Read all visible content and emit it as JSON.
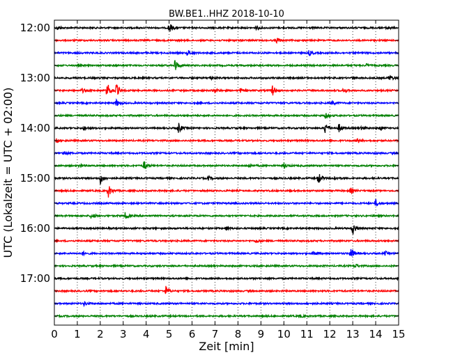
{
  "chart_data": {
    "type": "line",
    "title": "BW.BE1..HHZ 2018-10-10",
    "xlabel": "Zeit  [min]",
    "ylabel": "UTC (Lokalzeit = UTC + 02:00)",
    "xlim": [
      0,
      15
    ],
    "x_ticks": [
      0,
      1,
      2,
      3,
      4,
      5,
      6,
      7,
      8,
      9,
      10,
      11,
      12,
      13,
      14,
      15
    ],
    "y_tick_labels": [
      "12:00",
      "13:00",
      "14:00",
      "15:00",
      "16:00",
      "17:00"
    ],
    "grid": "vertical dotted at each minute",
    "trace_colors": [
      "#000000",
      "#ff0000",
      "#0000ff",
      "#008000"
    ],
    "traces": [
      {
        "start": "12:00",
        "events": [
          [
            0.15,
            3
          ],
          [
            5.0,
            8
          ],
          [
            8.8,
            3
          ],
          [
            14.5,
            3
          ]
        ]
      },
      {
        "start": "12:15",
        "events": [
          [
            9.7,
            4
          ]
        ]
      },
      {
        "start": "12:30",
        "events": [
          [
            5.8,
            4
          ],
          [
            11.1,
            4
          ]
        ]
      },
      {
        "start": "12:45",
        "events": [
          [
            5.25,
            9
          ],
          [
            13.6,
            2
          ]
        ]
      },
      {
        "start": "13:00",
        "events": [
          [
            6.8,
            3
          ],
          [
            13.0,
            2
          ],
          [
            14.6,
            5
          ]
        ]
      },
      {
        "start": "13:15",
        "events": [
          [
            1.2,
            3
          ],
          [
            2.3,
            12
          ],
          [
            2.7,
            9
          ],
          [
            7.0,
            3
          ],
          [
            8.1,
            3
          ],
          [
            9.5,
            8
          ],
          [
            12.6,
            3
          ]
        ]
      },
      {
        "start": "13:30",
        "events": [
          [
            2.7,
            5
          ],
          [
            12.1,
            3
          ]
        ]
      },
      {
        "start": "13:45",
        "events": [
          [
            11.8,
            4
          ]
        ]
      },
      {
        "start": "14:00",
        "events": [
          [
            1.3,
            3
          ],
          [
            5.4,
            8
          ],
          [
            11.8,
            9
          ],
          [
            12.4,
            6
          ],
          [
            13.4,
            3
          ],
          [
            14.2,
            3
          ]
        ]
      },
      {
        "start": "14:15",
        "events": [
          [
            0.1,
            3
          ],
          [
            13.2,
            4
          ]
        ]
      },
      {
        "start": "14:30",
        "events": [
          [
            0.4,
            4
          ]
        ]
      },
      {
        "start": "14:45",
        "events": [
          [
            1.1,
            3
          ],
          [
            3.9,
            7
          ],
          [
            8.5,
            3
          ],
          [
            10.0,
            4
          ]
        ]
      },
      {
        "start": "15:00",
        "events": [
          [
            2.0,
            8
          ],
          [
            6.7,
            3
          ],
          [
            11.5,
            9
          ],
          [
            12.2,
            3
          ]
        ]
      },
      {
        "start": "15:15",
        "events": [
          [
            2.35,
            9
          ],
          [
            12.9,
            4
          ]
        ]
      },
      {
        "start": "15:30",
        "events": [
          [
            14.0,
            5
          ]
        ]
      },
      {
        "start": "15:45",
        "events": [
          [
            1.6,
            4
          ],
          [
            3.1,
            6
          ]
        ]
      },
      {
        "start": "16:00",
        "events": [
          [
            7.5,
            3
          ],
          [
            13.0,
            9
          ]
        ]
      },
      {
        "start": "16:15",
        "events": [
          [
            8.8,
            3
          ]
        ]
      },
      {
        "start": "16:30",
        "events": [
          [
            1.2,
            3
          ],
          [
            11.3,
            3
          ],
          [
            12.9,
            9
          ],
          [
            14.4,
            3
          ]
        ]
      },
      {
        "start": "16:45",
        "events": [
          [
            13.1,
            3
          ]
        ]
      },
      {
        "start": "17:00",
        "events": [
          [
            15.0,
            4
          ]
        ]
      },
      {
        "start": "17:15",
        "events": [
          [
            4.85,
            7
          ]
        ]
      },
      {
        "start": "17:30",
        "events": [
          [
            1.3,
            3
          ],
          [
            11.0,
            2
          ]
        ]
      },
      {
        "start": "17:45",
        "events": [
          [
            10.7,
            2
          ]
        ]
      }
    ]
  }
}
